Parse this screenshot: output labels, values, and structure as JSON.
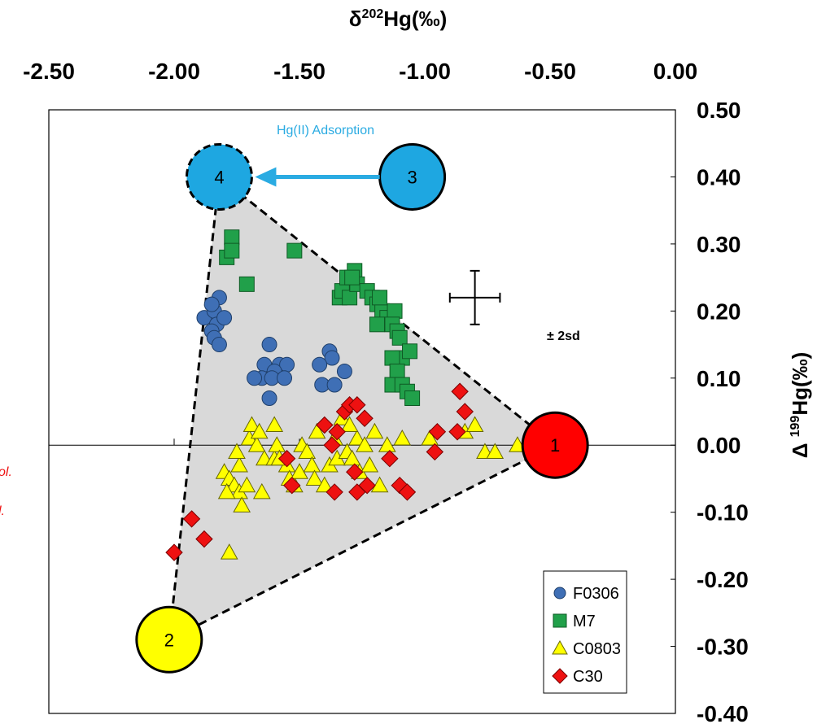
{
  "colors": {
    "F0306": "#3f6fb5",
    "M7": "#21a04a",
    "C0803": "#ffff00",
    "C30": "#ee1111",
    "endmember1": "#ff0000",
    "endmember2": "#ffff00",
    "endmember3": "#1ea7e1",
    "endmember4": "#1ea7e1",
    "arrow": "#2aabe2",
    "triangle_fill": "#d9d9d9"
  },
  "chart_data": {
    "type": "scatter",
    "xlabel_base": "δ",
    "xlabel_sup": "202",
    "xlabel_rest": "Hg(‰)",
    "ylabel_base": "Δ ",
    "ylabel_sup": "199",
    "ylabel_rest": "Hg(‰)",
    "xlim": [
      -2.5,
      0.0
    ],
    "ylim": [
      -0.4,
      0.5
    ],
    "x_ticks": [
      "-2.50",
      "-2.00",
      "-1.50",
      "-1.00",
      "-0.50",
      "0.00"
    ],
    "y_ticks": [
      "0.50",
      "0.40",
      "0.30",
      "0.20",
      "0.10",
      "0.00",
      "-0.10",
      "-0.20",
      "-0.30",
      "-0.40"
    ],
    "legend_placement": "bottom-right",
    "endmembers": [
      {
        "label": "1",
        "x": -0.48,
        "y": 0.0
      },
      {
        "label": "2",
        "x": -2.02,
        "y": -0.29
      },
      {
        "label": "3",
        "x": -1.05,
        "y": 0.4
      },
      {
        "label": "4",
        "x": -1.82,
        "y": 0.4
      }
    ],
    "arrow_label": "Hg(II) Adsorption",
    "error_bar_label": "± 2sd",
    "error_bar": {
      "x": -0.8,
      "y": 0.22,
      "dx": 0.1,
      "dy": 0.04
    },
    "edge_fragments": [
      "ol.",
      "l."
    ],
    "series": [
      {
        "name": "F0306",
        "marker": "circle",
        "points": [
          [
            -1.88,
            0.19
          ],
          [
            -1.84,
            0.2
          ],
          [
            -1.82,
            0.22
          ],
          [
            -1.83,
            0.18
          ],
          [
            -1.8,
            0.19
          ],
          [
            -1.85,
            0.17
          ],
          [
            -1.84,
            0.16
          ],
          [
            -1.82,
            0.15
          ],
          [
            -1.85,
            0.21
          ],
          [
            -1.62,
            0.15
          ],
          [
            -1.64,
            0.12
          ],
          [
            -1.58,
            0.12
          ],
          [
            -1.55,
            0.12
          ],
          [
            -1.6,
            0.11
          ],
          [
            -1.65,
            0.1
          ],
          [
            -1.61,
            0.1
          ],
          [
            -1.56,
            0.1
          ],
          [
            -1.68,
            0.1
          ],
          [
            -1.38,
            0.14
          ],
          [
            -1.37,
            0.13
          ],
          [
            -1.42,
            0.12
          ],
          [
            -1.32,
            0.11
          ],
          [
            -1.41,
            0.09
          ],
          [
            -1.36,
            0.09
          ],
          [
            -1.62,
            0.07
          ]
        ]
      },
      {
        "name": "M7",
        "marker": "square",
        "points": [
          [
            -1.77,
            0.31
          ],
          [
            -1.79,
            0.28
          ],
          [
            -1.77,
            0.29
          ],
          [
            -1.71,
            0.24
          ],
          [
            -1.52,
            0.29
          ],
          [
            -1.34,
            0.22
          ],
          [
            -1.33,
            0.23
          ],
          [
            -1.31,
            0.25
          ],
          [
            -1.3,
            0.22
          ],
          [
            -1.28,
            0.26
          ],
          [
            -1.27,
            0.24
          ],
          [
            -1.23,
            0.23
          ],
          [
            -1.21,
            0.22
          ],
          [
            -1.19,
            0.21
          ],
          [
            -1.17,
            0.2
          ],
          [
            -1.15,
            0.19
          ],
          [
            -1.12,
            0.2
          ],
          [
            -1.13,
            0.18
          ],
          [
            -1.19,
            0.18
          ],
          [
            -1.11,
            0.17
          ],
          [
            -1.1,
            0.16
          ],
          [
            -1.09,
            0.13
          ],
          [
            -1.06,
            0.14
          ],
          [
            -1.13,
            0.13
          ],
          [
            -1.11,
            0.11
          ],
          [
            -1.13,
            0.09
          ],
          [
            -1.09,
            0.09
          ],
          [
            -1.07,
            0.08
          ],
          [
            -1.05,
            0.07
          ],
          [
            -1.18,
            0.22
          ],
          [
            -1.29,
            0.25
          ]
        ]
      },
      {
        "name": "C0803",
        "marker": "triangle",
        "points": [
          [
            -1.8,
            -0.04
          ],
          [
            -1.78,
            -0.05
          ],
          [
            -1.76,
            -0.06
          ],
          [
            -1.74,
            -0.07
          ],
          [
            -1.79,
            -0.07
          ],
          [
            -1.71,
            -0.06
          ],
          [
            -1.73,
            -0.09
          ],
          [
            -1.74,
            -0.03
          ],
          [
            -1.75,
            -0.01
          ],
          [
            -1.7,
            0.01
          ],
          [
            -1.67,
            0.0
          ],
          [
            -1.69,
            0.03
          ],
          [
            -1.66,
            0.02
          ],
          [
            -1.64,
            -0.02
          ],
          [
            -1.6,
            -0.02
          ],
          [
            -1.59,
            0.0
          ],
          [
            -1.55,
            -0.03
          ],
          [
            -1.54,
            -0.05
          ],
          [
            -1.52,
            -0.06
          ],
          [
            -1.5,
            -0.04
          ],
          [
            -1.49,
            0.0
          ],
          [
            -1.47,
            -0.01
          ],
          [
            -1.45,
            -0.03
          ],
          [
            -1.44,
            -0.05
          ],
          [
            -1.4,
            -0.06
          ],
          [
            -1.38,
            -0.03
          ],
          [
            -1.36,
            0.01
          ],
          [
            -1.35,
            -0.02
          ],
          [
            -1.33,
            0.04
          ],
          [
            -1.31,
            -0.01
          ],
          [
            -1.29,
            -0.02
          ],
          [
            -1.27,
            0.01
          ],
          [
            -1.26,
            -0.04
          ],
          [
            -1.24,
            0.0
          ],
          [
            -1.22,
            -0.03
          ],
          [
            -1.2,
            0.02
          ],
          [
            -1.18,
            -0.06
          ],
          [
            -1.15,
            0.0
          ],
          [
            -1.43,
            0.02
          ],
          [
            -1.58,
            -0.02
          ],
          [
            -1.78,
            -0.16
          ],
          [
            -0.98,
            0.01
          ],
          [
            -0.84,
            0.02
          ],
          [
            -0.8,
            0.03
          ],
          [
            -0.76,
            -0.01
          ],
          [
            -0.72,
            -0.01
          ],
          [
            -0.63,
            0.0
          ],
          [
            -1.3,
            0.03
          ],
          [
            -1.6,
            0.03
          ],
          [
            -1.09,
            0.01
          ],
          [
            -1.65,
            -0.07
          ]
        ]
      },
      {
        "name": "C30",
        "marker": "diamond",
        "points": [
          [
            -2.0,
            -0.16
          ],
          [
            -1.88,
            -0.14
          ],
          [
            -1.93,
            -0.11
          ],
          [
            -1.53,
            -0.06
          ],
          [
            -1.36,
            -0.07
          ],
          [
            -1.35,
            0.02
          ],
          [
            -1.32,
            0.05
          ],
          [
            -1.3,
            0.06
          ],
          [
            -1.27,
            0.06
          ],
          [
            -1.24,
            0.04
          ],
          [
            -1.28,
            -0.04
          ],
          [
            -1.23,
            -0.06
          ],
          [
            -1.27,
            -0.07
          ],
          [
            -1.14,
            -0.02
          ],
          [
            -1.1,
            -0.06
          ],
          [
            -1.07,
            -0.07
          ],
          [
            -0.95,
            0.02
          ],
          [
            -0.87,
            0.02
          ],
          [
            -0.84,
            0.05
          ],
          [
            -0.86,
            0.08
          ],
          [
            -0.96,
            -0.01
          ],
          [
            -1.37,
            0.0
          ],
          [
            -1.4,
            0.03
          ],
          [
            -1.55,
            -0.02
          ]
        ]
      }
    ]
  }
}
